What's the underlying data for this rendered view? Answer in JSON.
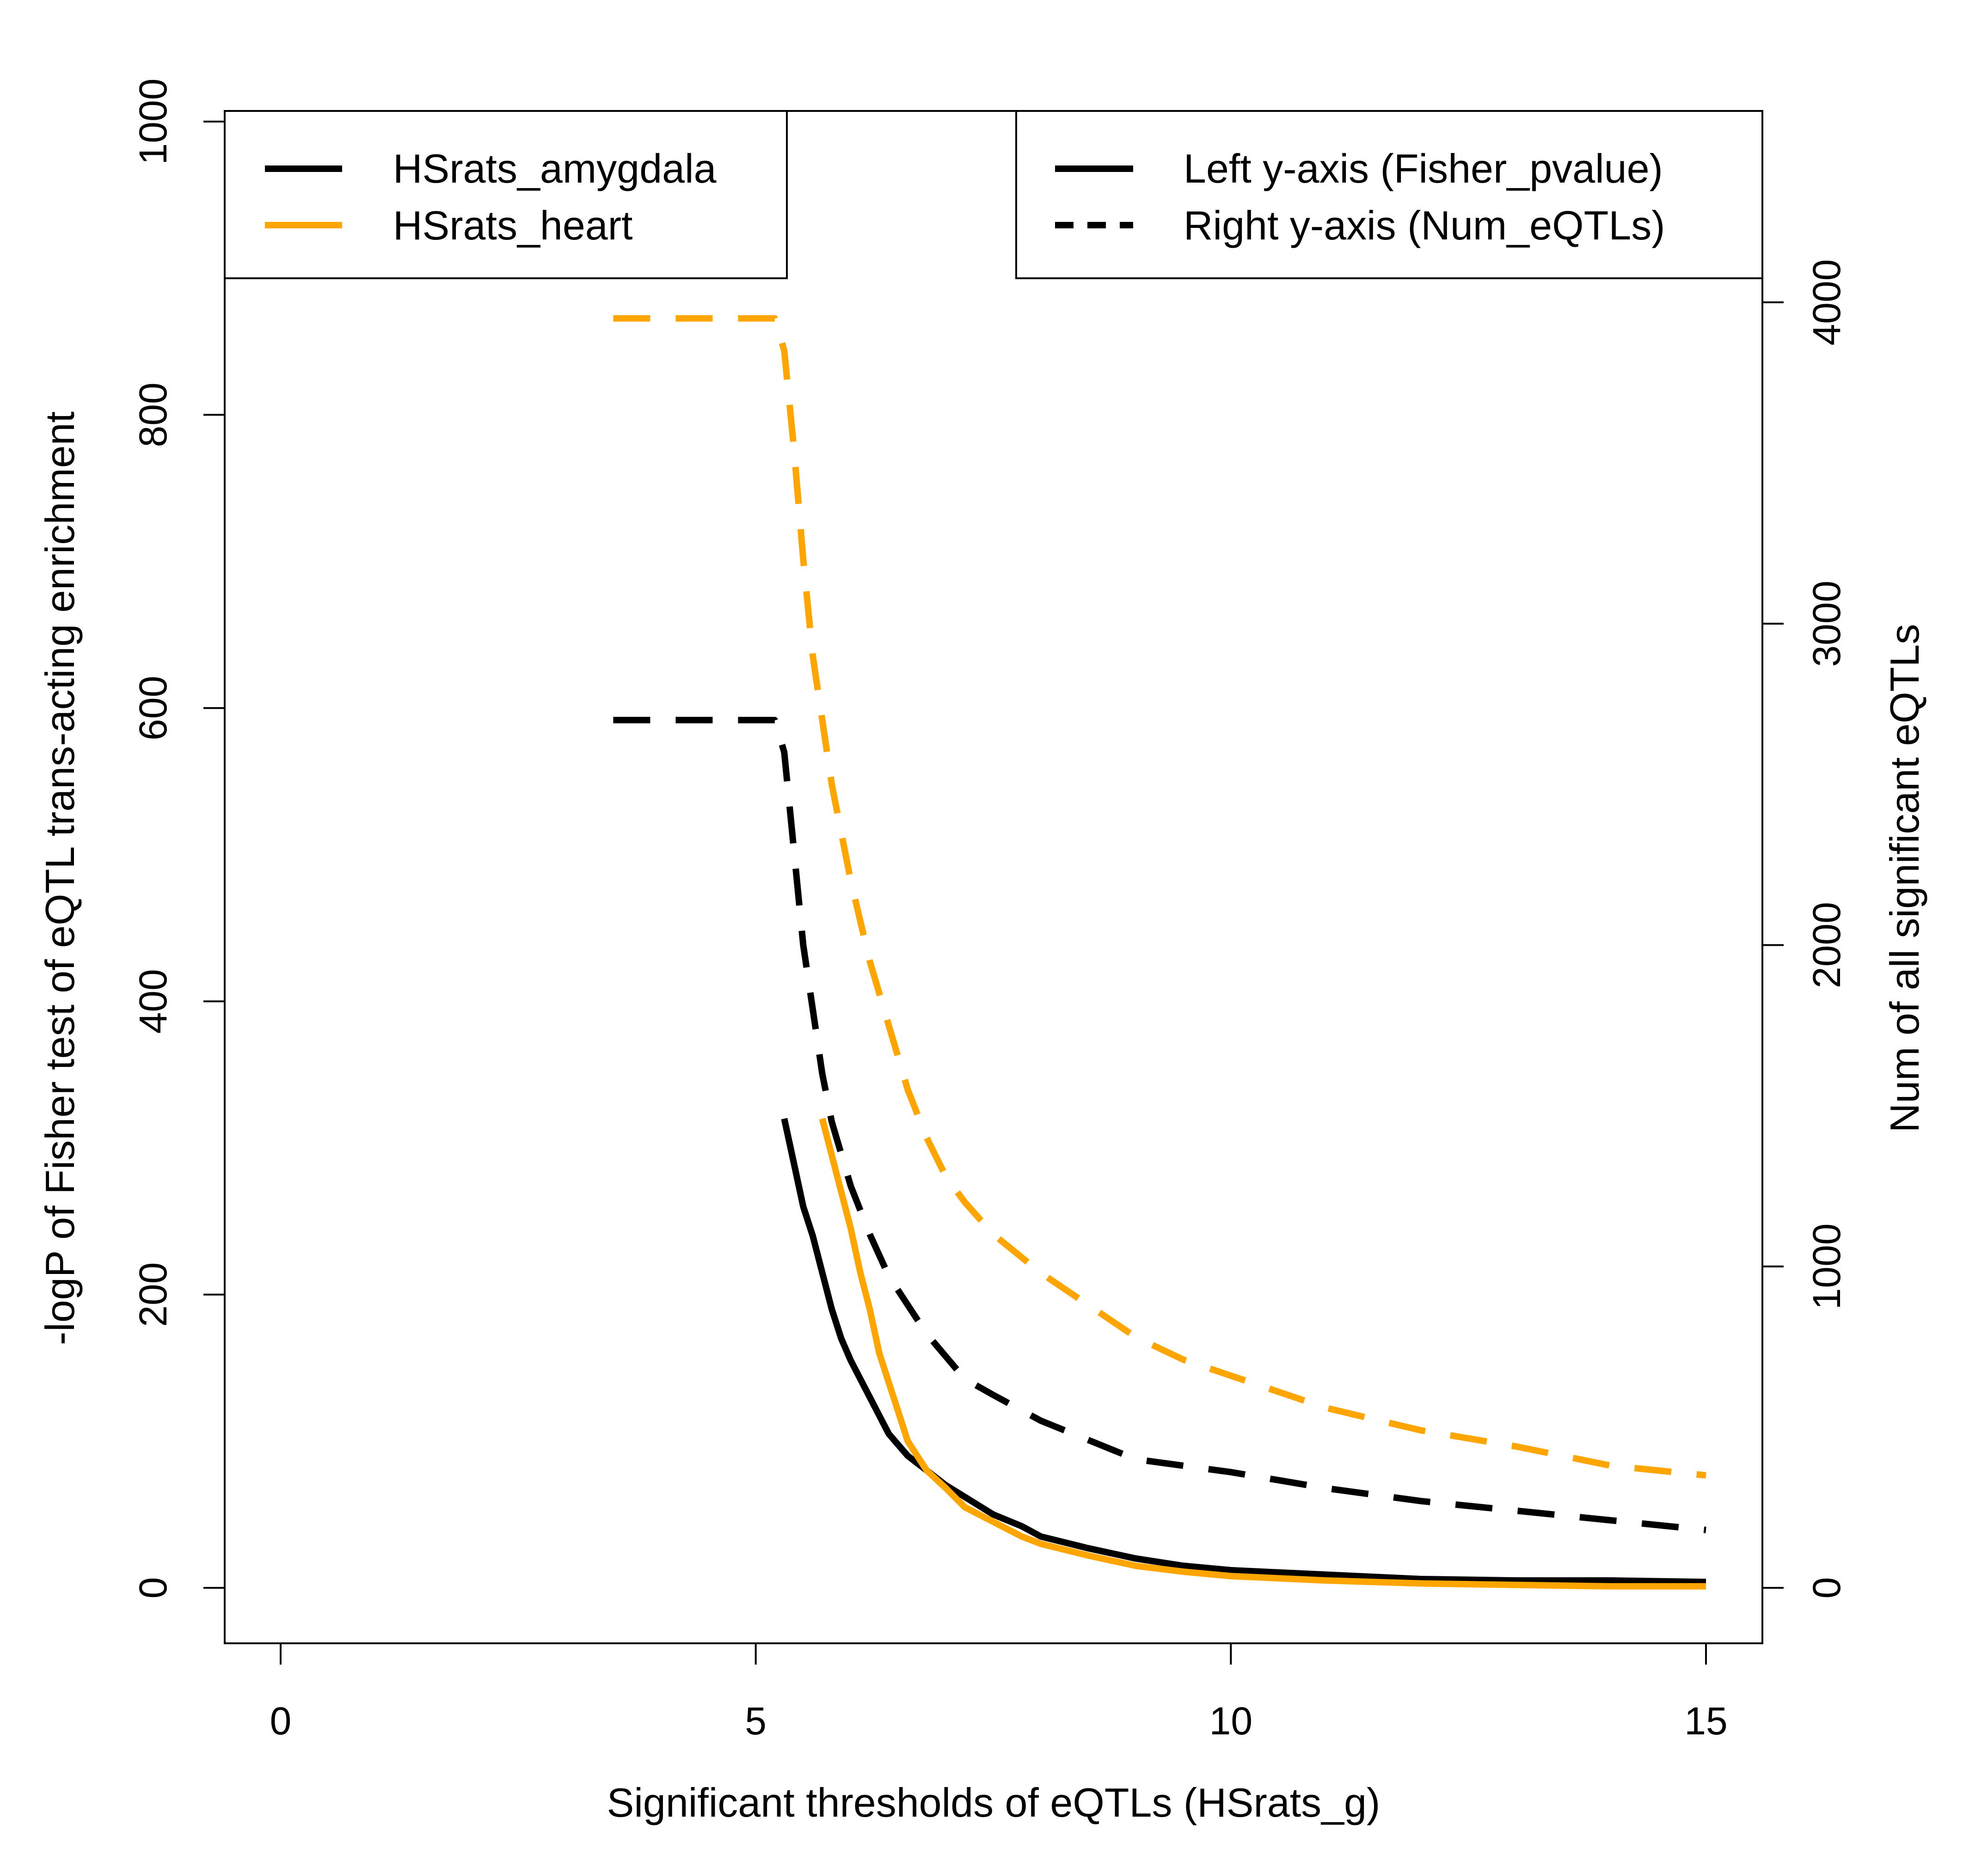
{
  "chart_data": {
    "type": "line",
    "xlabel": "Significant thresholds of eQTLs (HSrats_g)",
    "ylabel_left": "-logP of Fisher test of eQTL trans-acting enrichment",
    "ylabel_right": "Num of all significant eQTLs",
    "xlim": [
      0,
      15
    ],
    "ylim_left": [
      0,
      1000
    ],
    "ylim_right": [
      0,
      4000
    ],
    "x_ticks": [
      0,
      5,
      10,
      15
    ],
    "y_left_ticks": [
      0,
      200,
      400,
      600,
      800,
      1000
    ],
    "y_right_ticks": [
      0,
      1000,
      2000,
      3000,
      4000
    ],
    "grid": false,
    "legends": [
      {
        "position": "top-left",
        "entries": [
          {
            "label": "HSrats_amygdala",
            "color": "#000000",
            "dash": "solid"
          },
          {
            "label": "HSrats_heart",
            "color": "#FFA500",
            "dash": "solid"
          }
        ]
      },
      {
        "position": "top-right",
        "entries": [
          {
            "label": "Left y-axis (Fisher_pvalue)",
            "color": "#000000",
            "dash": "solid"
          },
          {
            "label": "Right y-axis (Num_eQTLs)",
            "color": "#000000",
            "dash": "dashed"
          }
        ]
      }
    ],
    "series": [
      {
        "name": "HSrats_amygdala",
        "axis": "left",
        "color": "#000000",
        "dash": "solid",
        "x": [
          5.3,
          5.4,
          5.5,
          5.6,
          5.7,
          5.8,
          5.9,
          6.0,
          6.2,
          6.4,
          6.6,
          6.8,
          7.0,
          7.2,
          7.5,
          7.8,
          8.0,
          8.5,
          9.0,
          9.5,
          10.0,
          11.0,
          12.0,
          13.0,
          14.0,
          15.0
        ],
        "y": [
          320,
          290,
          260,
          240,
          215,
          190,
          170,
          155,
          130,
          105,
          90,
          80,
          70,
          62,
          50,
          42,
          35,
          27,
          20,
          15,
          12,
          9,
          6,
          5,
          5,
          4
        ]
      },
      {
        "name": "HSrats_heart",
        "axis": "left",
        "color": "#FFA500",
        "dash": "solid",
        "x": [
          5.7,
          5.8,
          5.9,
          6.0,
          6.1,
          6.2,
          6.3,
          6.4,
          6.5,
          6.6,
          6.8,
          7.0,
          7.2,
          7.5,
          7.8,
          8.0,
          8.5,
          9.0,
          9.5,
          10.0,
          11.0,
          12.0,
          13.0,
          14.0,
          15.0
        ],
        "y": [
          320,
          295,
          270,
          245,
          215,
          190,
          160,
          140,
          120,
          100,
          80,
          68,
          55,
          45,
          35,
          30,
          22,
          15,
          11,
          8,
          5,
          3,
          2,
          1,
          1
        ]
      },
      {
        "name": "HSrats_amygdala",
        "axis": "right",
        "color": "#000000",
        "dash": "dashed",
        "x": [
          3.5,
          4.0,
          4.5,
          5.0,
          5.2,
          5.3,
          5.4,
          5.5,
          5.6,
          5.7,
          5.8,
          6.0,
          6.2,
          6.4,
          6.6,
          6.8,
          7.0,
          7.2,
          7.5,
          8.0,
          8.5,
          9.0,
          9.5,
          10.0,
          11.0,
          12.0,
          13.0,
          14.0,
          15.0
        ],
        "y": [
          2700,
          2700,
          2700,
          2700,
          2700,
          2600,
          2300,
          2000,
          1800,
          1600,
          1450,
          1250,
          1100,
          970,
          880,
          790,
          720,
          650,
          600,
          520,
          460,
          400,
          380,
          360,
          310,
          270,
          240,
          210,
          180
        ]
      },
      {
        "name": "HSrats_heart",
        "axis": "right",
        "color": "#FFA500",
        "dash": "dashed",
        "x": [
          3.5,
          4.0,
          4.5,
          5.0,
          5.2,
          5.3,
          5.4,
          5.5,
          5.6,
          5.8,
          6.0,
          6.2,
          6.4,
          6.6,
          6.8,
          7.0,
          7.2,
          7.5,
          8.0,
          8.5,
          9.0,
          9.5,
          10.0,
          11.0,
          12.0,
          13.0,
          14.0,
          15.0
        ],
        "y": [
          3950,
          3950,
          3950,
          3950,
          3950,
          3850,
          3550,
          3200,
          2900,
          2500,
          2200,
          1950,
          1750,
          1550,
          1400,
          1280,
          1200,
          1100,
          980,
          880,
          780,
          710,
          660,
          560,
          490,
          440,
          380,
          350
        ]
      }
    ]
  }
}
